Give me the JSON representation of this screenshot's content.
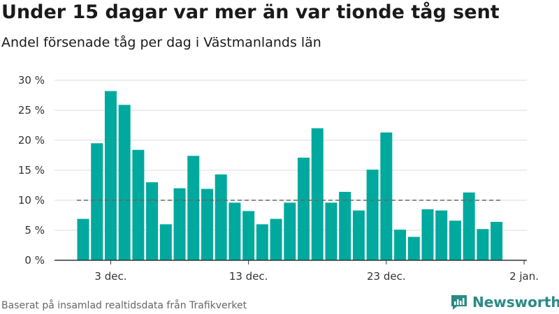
{
  "title": "Under 15 dagar var mer än var tionde tåg sent",
  "subtitle": "Andel försenade tåg per dag i Västmanlands län",
  "footer": "Baserat på insamlad realtidsdata från Trafikverket",
  "logo_text": "Newsworthy",
  "colors": {
    "bar": "#00a99d",
    "reference_line": "#666666",
    "grid": "#dddddd",
    "logo": "#2a8a85"
  },
  "chart_data": {
    "type": "bar",
    "title": "Under 15 dagar var mer än var tionde tåg sent",
    "subtitle": "Andel försenade tåg per dag i Västmanlands län",
    "x_start": "2023-12-01",
    "x_end": "2023-12-31",
    "x": [
      "2023-12-01",
      "2023-12-02",
      "2023-12-03",
      "2023-12-04",
      "2023-12-05",
      "2023-12-06",
      "2023-12-07",
      "2023-12-08",
      "2023-12-09",
      "2023-12-10",
      "2023-12-11",
      "2023-12-12",
      "2023-12-13",
      "2023-12-14",
      "2023-12-15",
      "2023-12-16",
      "2023-12-17",
      "2023-12-18",
      "2023-12-19",
      "2023-12-20",
      "2023-12-21",
      "2023-12-22",
      "2023-12-23",
      "2023-12-24",
      "2023-12-25",
      "2023-12-26",
      "2023-12-27",
      "2023-12-28",
      "2023-12-29",
      "2023-12-30",
      "2023-12-31"
    ],
    "values": [
      6.9,
      19.5,
      28.2,
      25.9,
      18.4,
      13.0,
      6.0,
      12.0,
      17.4,
      11.9,
      14.3,
      9.6,
      8.2,
      6.0,
      6.9,
      9.6,
      17.1,
      22.0,
      9.6,
      11.4,
      8.3,
      15.1,
      21.3,
      5.1,
      3.9,
      8.5,
      8.3,
      6.6,
      11.3,
      5.2,
      6.4
    ],
    "reference_line": 10,
    "ylim": [
      0,
      30
    ],
    "y_ticks": [
      0,
      5,
      10,
      15,
      20,
      25,
      30
    ],
    "y_tick_labels": [
      "0 %",
      "5 %",
      "10 %",
      "15 %",
      "20 %",
      "25 %",
      "30 %"
    ],
    "x_ticks": [
      "2023-12-03",
      "2023-12-13",
      "2023-12-23",
      "2024-01-02"
    ],
    "x_tick_labels": [
      "3 dec.",
      "13 dec.",
      "23 dec.",
      "2 jan."
    ],
    "grid": true,
    "legend": "none"
  }
}
